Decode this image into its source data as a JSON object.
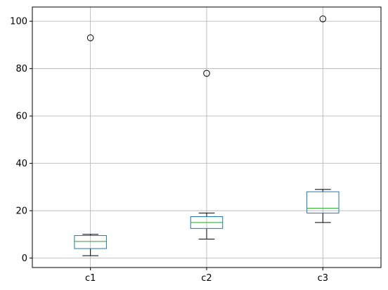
{
  "chart_data": {
    "type": "box",
    "categories": [
      "c1",
      "c2",
      "c3"
    ],
    "boxes": [
      {
        "category": "c1",
        "whisker_low": 1,
        "q1": 4,
        "median": 7,
        "q3": 9.5,
        "whisker_high": 10,
        "outliers": [
          93
        ]
      },
      {
        "category": "c2",
        "whisker_low": 8,
        "q1": 12.5,
        "median": 15,
        "q3": 17.5,
        "whisker_high": 19,
        "outliers": [
          78
        ]
      },
      {
        "category": "c3",
        "whisker_low": 15,
        "q1": 19,
        "median": 21,
        "q3": 28,
        "whisker_high": 29,
        "outliers": [
          101
        ]
      }
    ],
    "y_ticks": [
      "0",
      "20",
      "40",
      "60",
      "80",
      "100"
    ],
    "ylim": [
      -4,
      106
    ],
    "grid": true,
    "title": "",
    "xlabel": "",
    "ylabel": "",
    "colors": {
      "box": "#1f77b4",
      "median": "#2ca02c",
      "whisker": "#000000",
      "grid": "#b0b0b0",
      "axes": "#000000"
    }
  }
}
